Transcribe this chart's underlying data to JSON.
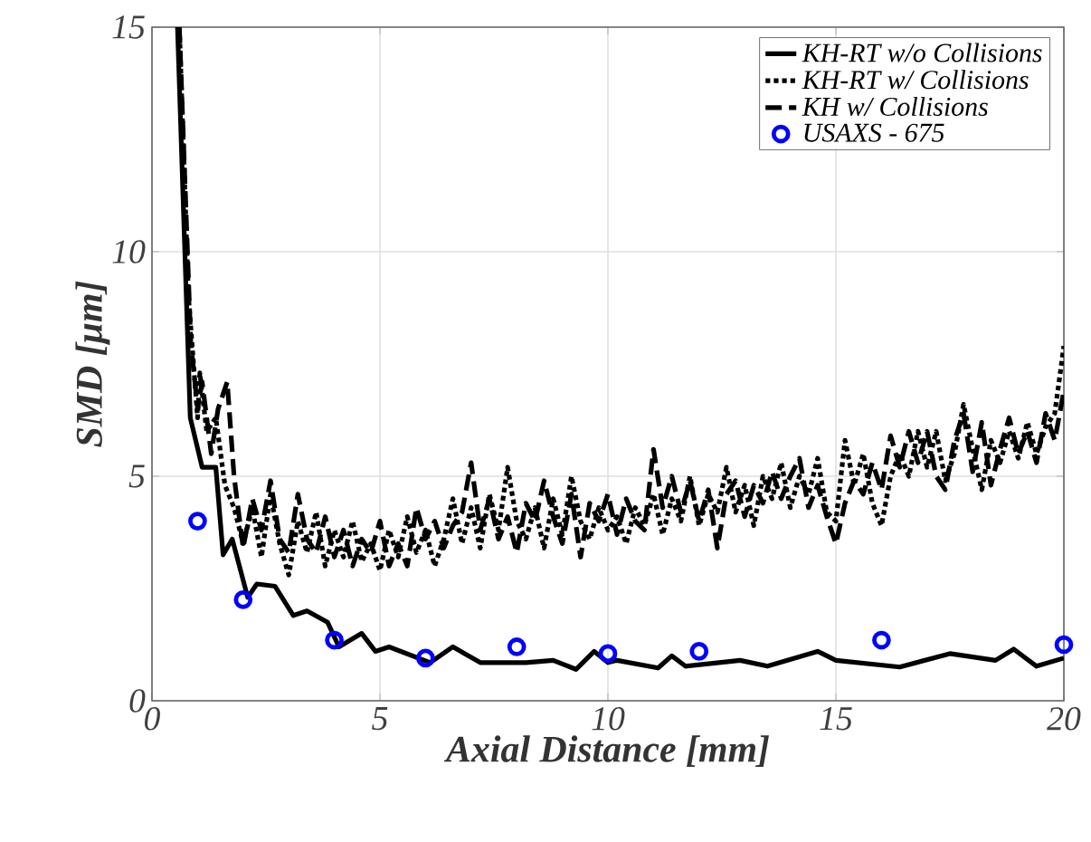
{
  "chart_data": {
    "type": "line",
    "xlabel": "Axial Distance [mm]",
    "ylabel": "SMD [μm]",
    "xlim": [
      0,
      20
    ],
    "ylim": [
      0,
      15
    ],
    "xticks": [
      0,
      5,
      10,
      15,
      20
    ],
    "yticks": [
      0,
      5,
      10,
      15
    ],
    "grid": true,
    "legend": "top right",
    "series": [
      {
        "name": "KH-RT w/o Collisions",
        "color": "#000000",
        "line_style": "solid",
        "marker": "none",
        "x": [
          0.56,
          0.84,
          1.1,
          1.4,
          1.56,
          1.76,
          2.1,
          2.3,
          2.7,
          3.1,
          3.4,
          3.85,
          4.1,
          4.6,
          4.9,
          5.2,
          6.1,
          6.6,
          7.2,
          8.2,
          8.8,
          9.3,
          9.7,
          10.0,
          10.2,
          11.1,
          11.4,
          11.7,
          12.9,
          13.5,
          14.6,
          15.0,
          16.4,
          17.5,
          18.5,
          18.9,
          19.4,
          20.0
        ],
        "values": [
          15,
          6.3,
          5.2,
          5.2,
          3.25,
          3.6,
          2.3,
          2.6,
          2.55,
          1.9,
          2.0,
          1.75,
          1.2,
          1.5,
          1.1,
          1.2,
          0.85,
          1.2,
          0.85,
          0.85,
          0.9,
          0.7,
          1.1,
          0.85,
          0.9,
          0.73,
          1.0,
          0.77,
          0.9,
          0.77,
          1.1,
          0.9,
          0.75,
          1.05,
          0.9,
          1.15,
          0.77,
          0.95
        ]
      },
      {
        "name": "KH-RT w/ Collisions",
        "color": "#000000",
        "line_style": "dotted",
        "marker": "none",
        "x": [
          0.6,
          0.8,
          1.0,
          1.05,
          1.2,
          1.4,
          1.6,
          1.8,
          2.0,
          2.2,
          2.4,
          2.6,
          2.8,
          3.0,
          3.2,
          3.4,
          3.6,
          3.8,
          4.0,
          4.2,
          4.4,
          4.6,
          4.8,
          5.0,
          5.2,
          5.4,
          5.6,
          5.8,
          6.0,
          6.2,
          6.4,
          6.6,
          6.8,
          7.0,
          7.2,
          7.4,
          7.6,
          7.8,
          8.0,
          8.2,
          8.4,
          8.6,
          8.8,
          9.0,
          9.2,
          9.4,
          9.6,
          9.8,
          10.0,
          10.2,
          10.4,
          10.6,
          10.8,
          11.0,
          11.2,
          11.4,
          11.6,
          11.8,
          12.0,
          12.2,
          12.4,
          12.6,
          12.8,
          13.0,
          13.2,
          13.4,
          13.6,
          13.8,
          14.0,
          14.2,
          14.4,
          14.6,
          14.8,
          15.0,
          15.2,
          15.4,
          15.6,
          15.8,
          16.0,
          16.2,
          16.4,
          16.6,
          16.8,
          17.0,
          17.2,
          17.4,
          17.6,
          17.8,
          18.0,
          18.2,
          18.4,
          18.6,
          18.8,
          19.0,
          19.2,
          19.4,
          19.6,
          19.8,
          20.0
        ],
        "values": [
          15,
          9,
          6.3,
          7.3,
          6.0,
          6.3,
          4.8,
          4.3,
          3.5,
          4.3,
          3.2,
          4.6,
          3.5,
          2.8,
          4.0,
          3.3,
          4.2,
          3.0,
          3.8,
          3.2,
          4.0,
          3.1,
          3.5,
          2.9,
          3.8,
          3.2,
          4.1,
          3.3,
          3.8,
          3.0,
          3.6,
          4.5,
          3.5,
          4.3,
          3.4,
          4.6,
          3.8,
          5.2,
          4.0,
          3.6,
          4.3,
          3.4,
          4.5,
          3.7,
          5.0,
          4.0,
          3.6,
          4.3,
          3.8,
          4.1,
          3.5,
          4.3,
          3.9,
          4.6,
          3.7,
          4.5,
          4.0,
          5.0,
          3.9,
          4.6,
          4.2,
          5.2,
          4.2,
          4.8,
          3.9,
          5.0,
          4.5,
          5.3,
          4.3,
          5.0,
          4.6,
          5.4,
          4.2,
          4.0,
          5.8,
          4.8,
          5.5,
          4.4,
          3.9,
          5.0,
          5.5,
          5.0,
          6.0,
          5.2,
          6.0,
          4.9,
          5.5,
          6.6,
          5.6,
          4.7,
          5.8,
          5.3,
          6.0,
          5.4,
          6.2,
          5.5,
          6.1,
          6.4,
          7.9
        ]
      },
      {
        "name": "KH w/ Collisions",
        "color": "#000000",
        "line_style": "dashed",
        "marker": "none",
        "x": [
          0.6,
          0.85,
          1.0,
          1.1,
          1.3,
          1.45,
          1.65,
          1.8,
          2.0,
          2.2,
          2.4,
          2.6,
          2.8,
          3.0,
          3.2,
          3.4,
          3.6,
          3.8,
          4.0,
          4.2,
          4.4,
          4.6,
          4.8,
          5.0,
          5.2,
          5.4,
          5.6,
          5.8,
          6.0,
          6.2,
          6.4,
          6.6,
          6.8,
          7.0,
          7.2,
          7.4,
          7.6,
          7.8,
          8.0,
          8.2,
          8.4,
          8.6,
          8.8,
          9.0,
          9.2,
          9.4,
          9.6,
          9.8,
          10.0,
          10.2,
          10.4,
          10.6,
          10.8,
          11.0,
          11.2,
          11.4,
          11.6,
          11.8,
          12.0,
          12.2,
          12.4,
          12.6,
          12.8,
          13.0,
          13.2,
          13.4,
          13.6,
          13.8,
          14.0,
          14.2,
          14.4,
          14.6,
          14.8,
          15.0,
          15.2,
          15.4,
          15.6,
          15.8,
          16.0,
          16.2,
          16.4,
          16.6,
          16.8,
          17.0,
          17.2,
          17.4,
          17.6,
          17.8,
          18.0,
          18.2,
          18.4,
          18.6,
          18.8,
          19.0,
          19.2,
          19.4,
          19.6,
          19.8,
          20.0
        ],
        "values": [
          15,
          8,
          6.5,
          7.1,
          5.5,
          6.5,
          7.1,
          5.0,
          3.4,
          4.5,
          3.8,
          4.9,
          3.6,
          3.3,
          4.6,
          3.6,
          3.3,
          4.1,
          3.2,
          3.8,
          3.0,
          3.6,
          3.3,
          4.0,
          3.0,
          3.5,
          3.0,
          4.3,
          3.6,
          4.0,
          3.4,
          3.9,
          4.2,
          5.3,
          3.8,
          4.5,
          3.6,
          4.1,
          3.3,
          4.4,
          4.0,
          4.9,
          4.1,
          3.5,
          4.6,
          3.2,
          4.4,
          4.0,
          4.6,
          3.7,
          4.5,
          4.0,
          3.8,
          5.6,
          4.3,
          5.0,
          4.2,
          4.9,
          4.0,
          4.7,
          3.4,
          4.6,
          4.9,
          4.1,
          4.8,
          4.4,
          5.1,
          4.5,
          5.0,
          5.4,
          4.3,
          4.8,
          4.1,
          3.5,
          4.4,
          4.9,
          4.6,
          5.3,
          4.7,
          5.9,
          5.2,
          6.0,
          5.3,
          6.0,
          5.0,
          4.7,
          5.8,
          6.4,
          5.1,
          6.2,
          4.8,
          5.6,
          6.3,
          5.5,
          6.0,
          5.3,
          6.4,
          5.8,
          6.9
        ]
      },
      {
        "name": "USAXS - 675",
        "type": "scatter",
        "color": "#0000ff",
        "marker": "circle",
        "x": [
          1,
          2,
          4,
          6,
          8,
          10,
          12,
          16,
          20
        ],
        "values": [
          4.0,
          2.25,
          1.35,
          0.95,
          1.2,
          1.05,
          1.1,
          1.35,
          1.25
        ]
      }
    ]
  }
}
